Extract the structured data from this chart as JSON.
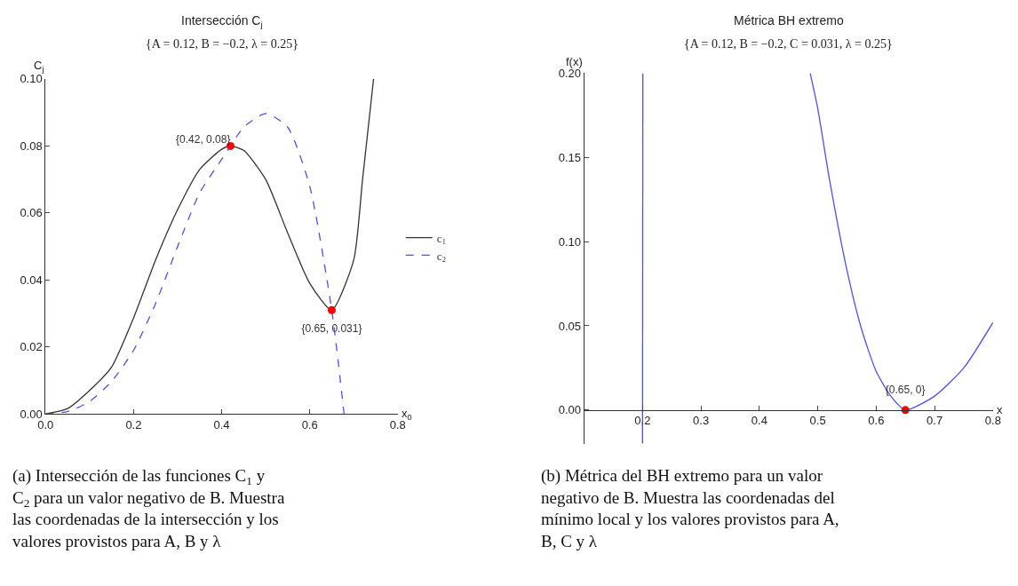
{
  "chart_data": [
    {
      "type": "line",
      "title": "Intersección C$_{j}$",
      "subtitle": "{A = 0.12, B = −0.2, λ = 0.25}",
      "xlabel": "x$_{0}$",
      "ylabel": "C$_{j}$",
      "xlim": [
        0,
        0.8
      ],
      "ylim": [
        0,
        0.1
      ],
      "xticks": [
        {
          "value": 0,
          "label": "0.0"
        },
        0.2,
        0.4,
        0.6,
        0.8
      ],
      "yticks": [
        {
          "value": 0,
          "label": "0.00"
        },
        0.02,
        0.04,
        0.06,
        0.08,
        {
          "value": 0.1,
          "label": "0.10"
        }
      ],
      "legend": "right",
      "marker": "none",
      "series": [
        {
          "name": "c$_{1}$",
          "color": "#333333",
          "line_style": "solid",
          "x": [
            0,
            0.05,
            0.1,
            0.15,
            0.2,
            0.25,
            0.3,
            0.35,
            0.4,
            0.42,
            0.45,
            0.5,
            0.55,
            0.6,
            0.65,
            0.7,
            0.72,
            0.745
          ],
          "values": [
            0,
            0.0016,
            0.007,
            0.014,
            0.0287,
            0.046,
            0.061,
            0.073,
            0.079,
            0.08,
            0.0787,
            0.07,
            0.054,
            0.039,
            0.031,
            0.046,
            0.07,
            0.1
          ]
        },
        {
          "name": "c$_{2}$",
          "color": "#4d4dff",
          "line_style": "dashed",
          "x": [
            0,
            0.05,
            0.1,
            0.15,
            0.2,
            0.25,
            0.3,
            0.35,
            0.4,
            0.42,
            0.45,
            0.5,
            0.55,
            0.6,
            0.65,
            0.678
          ],
          "values": [
            0,
            0.0007,
            0.0037,
            0.0097,
            0.019,
            0.033,
            0.05,
            0.066,
            0.076,
            0.08,
            0.0856,
            0.0897,
            0.0856,
            0.068,
            0.031,
            0
          ]
        },
        {
          "type": "scatter",
          "marker": "circle",
          "color": "#ff0000",
          "x": [
            0.42,
            0.65
          ],
          "values": [
            0.08,
            0.031
          ],
          "value_labels": [
            "{0.42, 0.08}",
            "{0.65, 0.031}"
          ]
        }
      ],
      "annotations": [
        "(a) Intersección de las funciones C$_{1}$ y C$_{2}$ para un valor negativo de B. Muestra las coordenadas de la intersección y los valores provistos para A, B y λ"
      ]
    },
    {
      "type": "line",
      "title": "Métrica BH extremo",
      "subtitle": "{A = 0.12, B = −0.2, C = 0.031, λ = 0.25}",
      "xlabel": "x",
      "ylabel": "f(x)",
      "xlim": [
        0.1,
        0.8
      ],
      "ylim": [
        -0.02,
        0.2
      ],
      "xticks": [
        0.2,
        0.3,
        0.4,
        0.5,
        0.6,
        0.7,
        0.8
      ],
      "yticks": [
        {
          "value": 0,
          "label": "0.00"
        },
        0.05,
        {
          "value": 0.1,
          "label": "0.10"
        },
        0.15,
        {
          "value": 0.2,
          "label": "0.20"
        }
      ],
      "marker": "none",
      "series": [
        {
          "color": "#4d4dff",
          "line_style": "solid",
          "x": [
            0.2,
            0.2005,
            0.3,
            0.487,
            0.5,
            0.52,
            0.55,
            0.575,
            0.6,
            0.625,
            0.65,
            0.7,
            0.75,
            0.8
          ],
          "values": [
            -0.02,
            0.2,
            null,
            0.2,
            0.179,
            0.137,
            0.083,
            0.048,
            0.023,
            0.0083,
            0,
            0.0083,
            0.025,
            0.052
          ]
        },
        {
          "type": "scatter",
          "marker": "circle",
          "color": "#ff0000",
          "x": [
            0.65
          ],
          "values": [
            0
          ],
          "value_labels": [
            "{0.65, 0}"
          ]
        }
      ],
      "annotations": [
        "(b) Métrica del BH extremo para un valor negativo de B. Muestra las coordenadas del mínimo local y los valores provistos para A, B, C y λ"
      ]
    }
  ]
}
